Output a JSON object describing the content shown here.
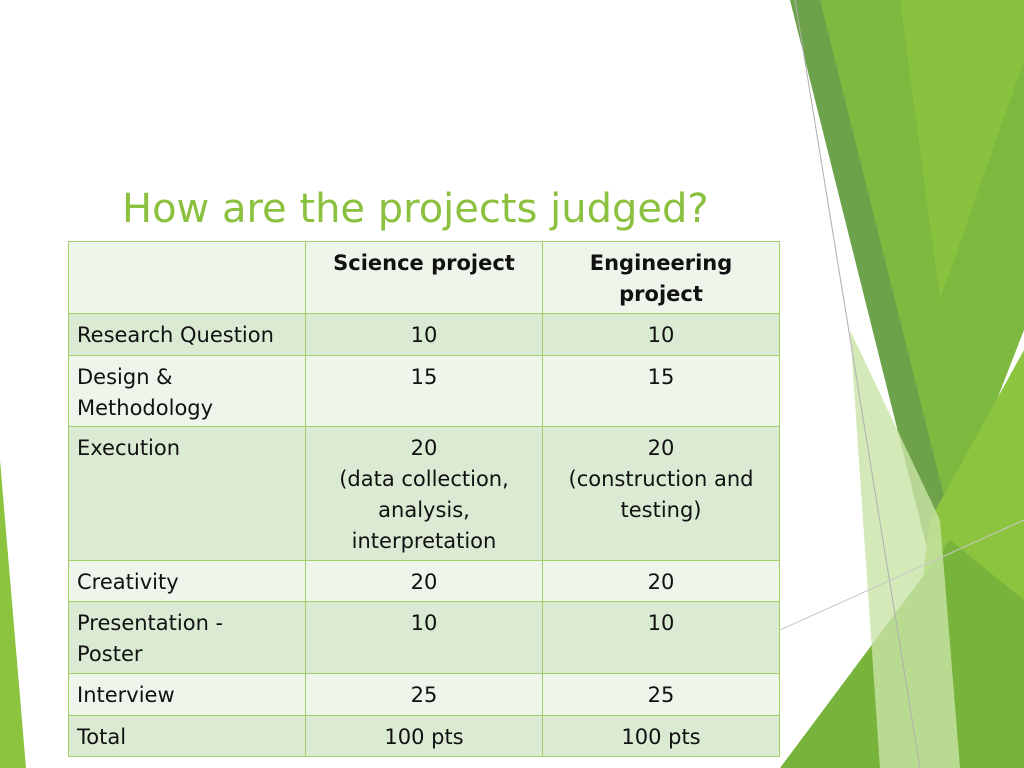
{
  "title": "How are the projects judged?",
  "table": {
    "header": [
      "",
      "Science project",
      "Engineering\nproject"
    ],
    "rows": [
      [
        "Research Question",
        "10",
        "10"
      ],
      [
        "Design &\nMethodology",
        "15",
        "15"
      ],
      [
        "Execution",
        "20\n(data collection, analysis, interpretation",
        "20\n(construction and testing)"
      ],
      [
        "Creativity",
        "20",
        "20"
      ],
      [
        "Presentation -\nPoster",
        "10",
        "10"
      ],
      [
        "Interview",
        "25",
        "25"
      ],
      [
        "Total",
        "100 pts",
        "100 pts"
      ]
    ]
  }
}
